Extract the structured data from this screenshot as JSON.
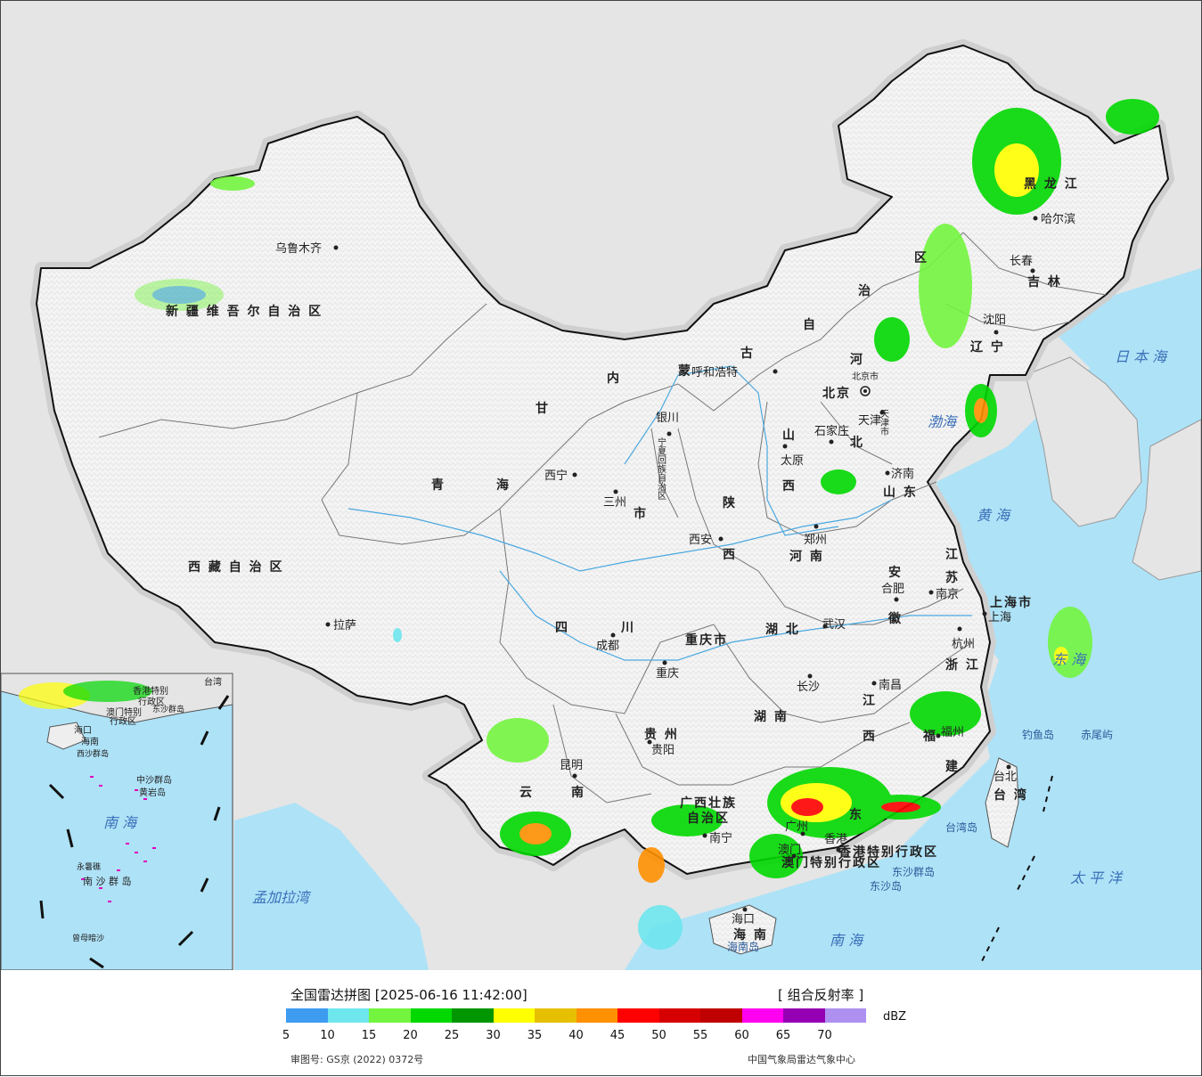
{
  "title": "全国雷达拼图 [2025-06-16 11:42:00]",
  "product": "[ 组合反射率 ]",
  "unit": "dBZ",
  "approval": "审图号: GS京 (2022) 0372号",
  "agency": "中国气象局雷达气象中心",
  "legend": {
    "colors": [
      "#3d9bf0",
      "#6ee6ee",
      "#73f53f",
      "#00d800",
      "#009600",
      "#ffff00",
      "#e6c000",
      "#ff9000",
      "#ff0000",
      "#d60000",
      "#c00000",
      "#ff00f0",
      "#9600b4",
      "#ad90f0"
    ],
    "ticks": [
      "5",
      "10",
      "15",
      "20",
      "25",
      "30",
      "35",
      "40",
      "45",
      "50",
      "55",
      "60",
      "65",
      "70"
    ]
  },
  "provinces": {
    "xinjiang": "新 疆 维 吾 尔 自 治 区",
    "xizang": "西 藏 自 治 区",
    "qinghai_a": "青",
    "qinghai_b": "海",
    "gansu": "甘",
    "neimenggu": [
      "内",
      "蒙",
      "古",
      "自",
      "治",
      "区"
    ],
    "sichuan_a": "四",
    "sichuan_b": "川",
    "yunnan_a": "云",
    "yunnan_b": "南",
    "guizhou": "贵 州",
    "guangxi_a": "广西壮族",
    "guangxi_b": "自治区",
    "guangdong": "东",
    "hunan": "湖 南",
    "hubei": "湖 北",
    "henan": "河 南",
    "shanxi_a": "山",
    "shanxi_b": "西",
    "shaanxi_a": "陕",
    "shaanxi_b": "西",
    "hebei_a": "河",
    "hebei_b": "北",
    "shandong": "山 东",
    "jiangsu_a": "江",
    "jiangsu_b": "苏",
    "anhui_a": "安",
    "anhui_b": "徽",
    "zhejiang": "浙 江",
    "jiangxi_a": "江",
    "jiangxi_b": "西",
    "fujian_a": "福",
    "fujian_b": "建",
    "heilongjiang": "黑 龙 江",
    "jilin": "吉 林",
    "liaoning": "辽 宁",
    "chongqing": "重庆市",
    "ningxia": "宁夏回族自治区",
    "shanghai": "上海市",
    "hainan": "海 南",
    "taiwan": "台 湾",
    "hk": "香港特别行政区",
    "macau": "澳门特别行政区",
    "beijing": "北京",
    "tianjin": "天津",
    "tianjin_s": "天津市",
    "beijing_s": "北京市",
    "gan": "市"
  },
  "cities": {
    "urumqi": "乌鲁木齐",
    "lhasa": "拉萨",
    "xining": "西宁",
    "lanzhou": "三州",
    "yinchuan": "银川",
    "hohhot": "呼和浩特",
    "shijiazhuang": "石家庄",
    "taiyuan": "太原",
    "jinan": "济南",
    "zhengzhou": "郑州",
    "xian": "西安",
    "chengdu": "成都",
    "chongqing": "重庆",
    "wuhan": "武汉",
    "hefei": "合肥",
    "nanjing": "南京",
    "shanghai": "上海",
    "hangzhou": "杭州",
    "nanchang": "南昌",
    "changsha": "长沙",
    "guiyang": "贵阳",
    "kunming": "昆明",
    "nanning": "南宁",
    "guangzhou": "广州",
    "xianggang": "香港",
    "aomen": "澳门",
    "fuzhou": "福州",
    "taibei": "台北",
    "haikou": "海口",
    "shenyang": "沈阳",
    "changchun": "长春",
    "harbin": "哈尔滨"
  },
  "seas": {
    "bohai": "渤海",
    "huanghai": "黄 海",
    "donghai": "东 海",
    "nanhai": "南 海",
    "riben": "日 本 海",
    "taiping": "太 平 洋",
    "mengjiala": "孟加拉湾",
    "taiwan_dao": "台湾岛",
    "hainan_dao": "海南岛",
    "dongsha": "东沙群岛",
    "dongsha2": "东沙岛",
    "diaoyu": "钓鱼岛",
    "chiwei": "赤尾屿"
  },
  "inset": {
    "nanhai": "南 海",
    "zhongsha": "中沙群岛",
    "huangyan": "黄岩岛",
    "nansha": "南 沙 群 岛",
    "yongshu": "永暑礁",
    "zengmu": "曾母暗沙",
    "xisha": "西沙群岛",
    "taiwan": "台湾",
    "dongsha": "东沙群岛",
    "haikou": "海口",
    "hainan": "海南",
    "hk": "香港特别",
    "hk2": "行政区",
    "mo": "澳门特别",
    "mo2": "行政区"
  }
}
